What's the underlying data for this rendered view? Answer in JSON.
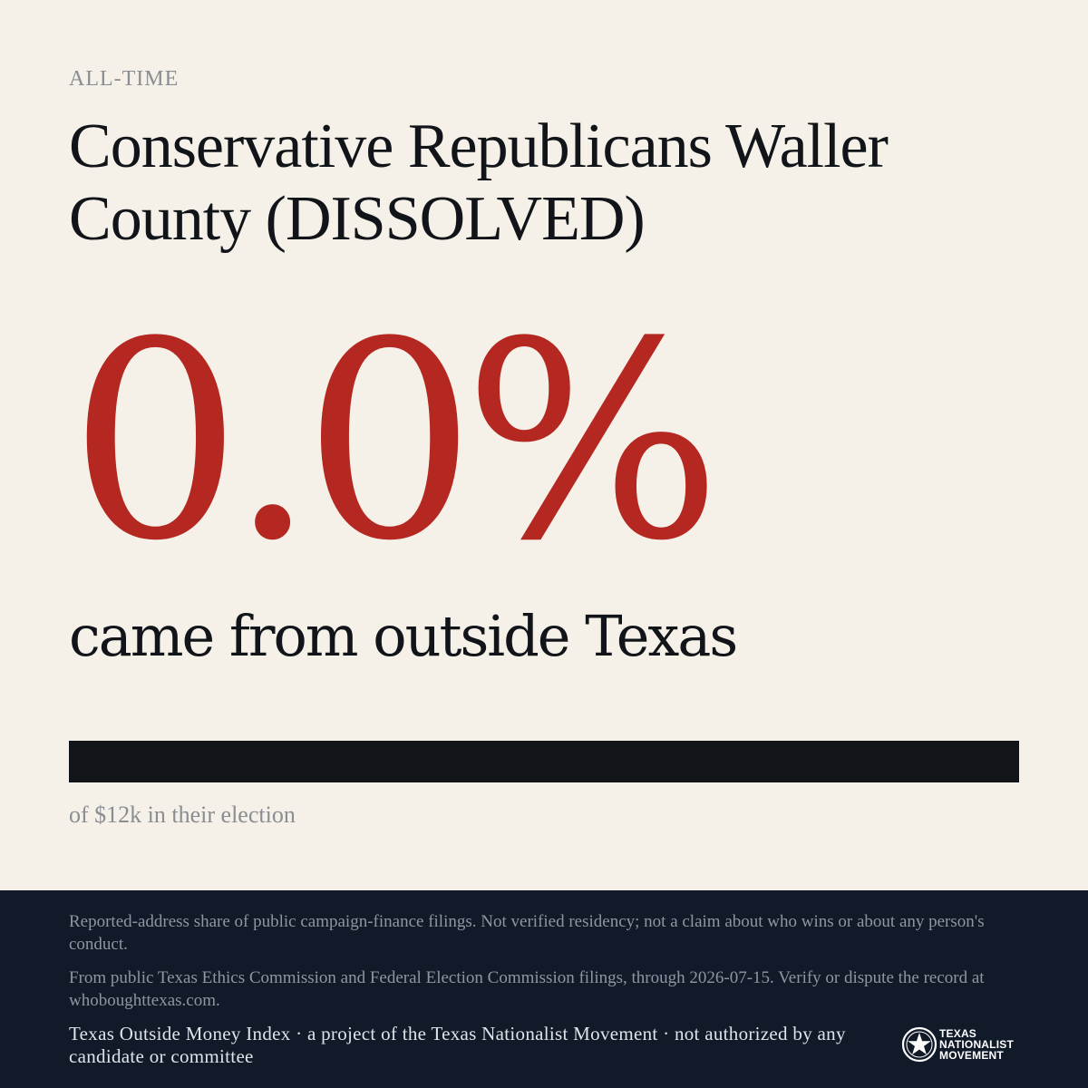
{
  "header": {
    "eyebrow": "ALL-TIME",
    "title": "Conservative Republicans Waller County (DISSOLVED)"
  },
  "headline": {
    "percent": "0.0%",
    "caption": "came from outside Texas"
  },
  "bar": {
    "outside_share_percent": 0.0,
    "fill_color": "#b52821",
    "track_color": "#111418"
  },
  "total_line": "of $12k in their election",
  "footer": {
    "note1": "Reported-address share of public campaign-finance filings. Not verified residency; not a claim about who wins or about any person's conduct.",
    "note2": "From public Texas Ethics Commission and Federal Election Commission filings, through 2026-07-15. Verify or dispute the record at whoboughttexas.com.",
    "credit": "Texas Outside Money Index · a project of the Texas Nationalist Movement · not authorized by any candidate or committee",
    "logo": {
      "icon": "star-seal-icon",
      "line1": "TEXAS",
      "line2": "NATIONALIST",
      "line3": "MOVEMENT"
    }
  },
  "colors": {
    "accent_red": "#b52821",
    "background": "#f5f0e8",
    "footer_bg": "#111a29",
    "ink": "#111418"
  }
}
